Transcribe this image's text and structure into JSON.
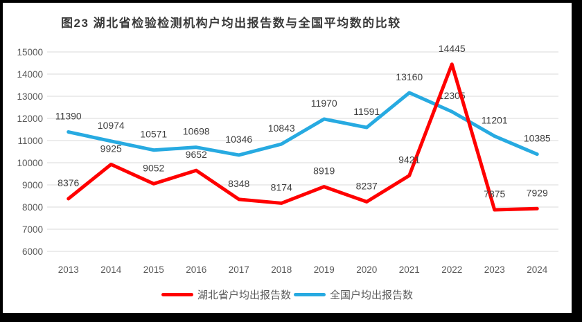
{
  "title": "图23 湖北省检验检测机构户均出报告数与全国平均数的比较",
  "chart_data": {
    "type": "line",
    "title": "图23 湖北省检验检测机构户均出报告数与全国平均数的比较",
    "categories": [
      "2013",
      "2014",
      "2015",
      "2016",
      "2017",
      "2018",
      "2019",
      "2020",
      "2021",
      "2022",
      "2023",
      "2024"
    ],
    "series": [
      {
        "name": "湖北省户均出报告数",
        "color": "#ff0000",
        "values": [
          8376,
          9925,
          9052,
          9652,
          8348,
          8174,
          8919,
          8237,
          9421,
          14445,
          7875,
          7929
        ]
      },
      {
        "name": "全国户均出报告数",
        "color": "#27aae1",
        "values": [
          11390,
          10974,
          10571,
          10698,
          10346,
          10843,
          11970,
          11591,
          13160,
          12305,
          11201,
          10385
        ]
      }
    ],
    "xlabel": "",
    "ylabel": "",
    "ylim": [
      6000,
      15000
    ],
    "yticks": [
      6000,
      7000,
      8000,
      9000,
      10000,
      11000,
      12000,
      13000,
      14000,
      15000
    ],
    "grid": true,
    "data_labels": true,
    "legend_position": "bottom",
    "colors": {
      "grid": "#d9d9d9",
      "tick_label": "#595959",
      "data_label": "#404040",
      "title": "#3a3a3a",
      "frame": "#000000",
      "background": "#ffffff"
    }
  }
}
